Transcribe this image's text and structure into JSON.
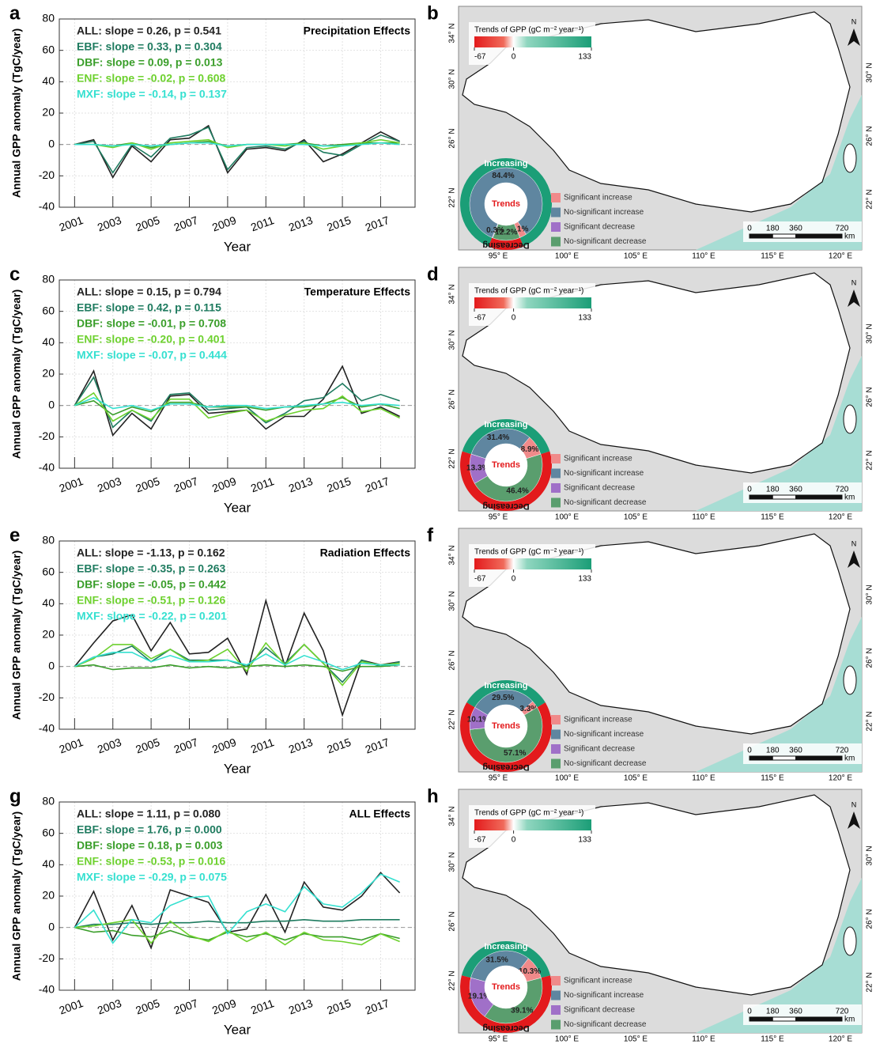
{
  "chart_data": [
    {
      "type": "line",
      "letter": "a",
      "title": "Precipitation Effects",
      "x_label": "Year",
      "y_label": "Annual GPP anomaly (TgC/year)",
      "x": [
        2001,
        2002,
        2003,
        2004,
        2005,
        2006,
        2007,
        2008,
        2009,
        2010,
        2011,
        2012,
        2013,
        2014,
        2015,
        2016,
        2017,
        2018
      ],
      "xlim": [
        2000.2,
        2018.8
      ],
      "xticks": [
        2001,
        2003,
        2005,
        2007,
        2009,
        2011,
        2013,
        2015,
        2017
      ],
      "ylim": [
        -40,
        80
      ],
      "yticks": [
        -40,
        -20,
        0,
        20,
        40,
        60,
        80
      ],
      "grid": true,
      "zero_line": true,
      "series": [
        {
          "name": "ALL: slope = 0.26,  p = 0.541",
          "color": "#222222",
          "values": [
            0,
            3,
            -21,
            -1,
            -11,
            3,
            4,
            12,
            -18,
            -3,
            -2,
            -4,
            3,
            -11,
            -6,
            1,
            8,
            2
          ]
        },
        {
          "name": "EBF: slope = 0.33,  p = 0.304",
          "color": "#1e7b5f",
          "values": [
            0,
            2,
            -18,
            0,
            -8,
            4,
            6,
            11,
            -16,
            -2,
            -1,
            -3,
            2,
            -5,
            -7,
            0,
            6,
            2
          ]
        },
        {
          "name": "DBF: slope = 0.09,  p = 0.013",
          "color": "#3a9e2a",
          "values": [
            0,
            0,
            -1,
            1,
            -2,
            0,
            1,
            2,
            -1,
            0,
            0,
            0,
            1,
            -1,
            0,
            1,
            1,
            1
          ]
        },
        {
          "name": "ENF: slope = -0.02,  p = 0.608",
          "color": "#6dd12e",
          "values": [
            0,
            0,
            -2,
            1,
            -3,
            1,
            2,
            3,
            -2,
            0,
            0,
            -1,
            1,
            -3,
            -1,
            1,
            3,
            1
          ]
        },
        {
          "name": "MXF: slope = -0.14,  p = 0.137",
          "color": "#35e0d0",
          "values": [
            0,
            0,
            -1,
            0,
            -1,
            0,
            1,
            1,
            -1,
            0,
            0,
            0,
            0,
            -1,
            -1,
            0,
            1,
            0
          ]
        }
      ]
    },
    {
      "type": "map",
      "letter": "b",
      "colorbar": {
        "title": "Trends of GPP (gC m⁻² year⁻¹)",
        "lim": [
          -67,
          133
        ],
        "ticks": [
          -67,
          0,
          133
        ]
      },
      "lat_labels": [
        "34° N",
        "30° N",
        "26° N",
        "22° N"
      ],
      "lon_labels": [
        "95° E",
        "100° E",
        "105° E",
        "110° E",
        "115° E",
        "120° E"
      ],
      "north": "N",
      "scalebar": {
        "ticks": [
          0,
          180,
          360,
          720
        ],
        "unit": "km"
      },
      "donut": {
        "center": "Trends",
        "ring_labels": [
          "Increasing",
          "Decreasing"
        ],
        "ring_colors": [
          "#1b9e77",
          "#e31a1c"
        ],
        "categories": [
          "Significant increase",
          "No-significant increase",
          "Significant decrease",
          "No-significant decrease"
        ],
        "colors": [
          "#f08a8a",
          "#5f86a0",
          "#a070c8",
          "#5a9e6e"
        ],
        "values": [
          3.1,
          84.4,
          0.3,
          12.2
        ],
        "value_labels": [
          "3.1%",
          "84.4%",
          "0.3%",
          "12.2%"
        ]
      }
    },
    {
      "type": "line",
      "letter": "c",
      "title": "Temperature Effects",
      "x_label": "Year",
      "y_label": "Annual GPP anomaly (TgC/year)",
      "x": [
        2001,
        2002,
        2003,
        2004,
        2005,
        2006,
        2007,
        2008,
        2009,
        2010,
        2011,
        2012,
        2013,
        2014,
        2015,
        2016,
        2017,
        2018
      ],
      "xlim": [
        2000.2,
        2018.8
      ],
      "xticks": [
        2001,
        2003,
        2005,
        2007,
        2009,
        2011,
        2013,
        2015,
        2017
      ],
      "ylim": [
        -40,
        80
      ],
      "yticks": [
        -40,
        -20,
        0,
        20,
        40,
        60,
        80
      ],
      "grid": true,
      "zero_line": true,
      "series": [
        {
          "name": "ALL: slope = 0.15,  p = 0.794",
          "color": "#222222",
          "values": [
            0,
            22,
            -19,
            -5,
            -15,
            6,
            7,
            -5,
            -4,
            -3,
            -15,
            -7,
            -7,
            4,
            25,
            -5,
            -1,
            -7
          ]
        },
        {
          "name": "EBF: slope = 0.42,  p = 0.115",
          "color": "#1e7b5f",
          "values": [
            0,
            18,
            -14,
            -3,
            -10,
            7,
            8,
            -3,
            -2,
            -1,
            -11,
            -5,
            3,
            5,
            14,
            3,
            7,
            3
          ]
        },
        {
          "name": "DBF: slope = -0.01,  p = 0.708",
          "color": "#3a9e2a",
          "values": [
            0,
            3,
            -6,
            -1,
            -4,
            2,
            2,
            -1,
            -1,
            -1,
            -3,
            -1,
            -1,
            1,
            5,
            -1,
            1,
            -2
          ]
        },
        {
          "name": "ENF: slope = -0.20,  p = 0.401",
          "color": "#6dd12e",
          "values": [
            0,
            8,
            -10,
            -3,
            -9,
            4,
            4,
            -8,
            -5,
            -3,
            -10,
            -6,
            -3,
            -2,
            6,
            -4,
            -2,
            -8
          ]
        },
        {
          "name": "MXF: slope = -0.07,  p = 0.444",
          "color": "#35e0d0",
          "values": [
            0,
            5,
            -2,
            0,
            -3,
            1,
            1,
            -1,
            0,
            0,
            -2,
            -1,
            0,
            1,
            2,
            0,
            1,
            0
          ]
        }
      ]
    },
    {
      "type": "map",
      "letter": "d",
      "colorbar": {
        "title": "Trends of GPP (gC m⁻² year⁻¹)",
        "lim": [
          -67,
          133
        ],
        "ticks": [
          -67,
          0,
          133
        ]
      },
      "lat_labels": [
        "34° N",
        "30° N",
        "26° N",
        "22° N"
      ],
      "lon_labels": [
        "95° E",
        "100° E",
        "105° E",
        "110° E",
        "115° E",
        "120° E"
      ],
      "north": "N",
      "scalebar": {
        "ticks": [
          0,
          180,
          360,
          720
        ],
        "unit": "km"
      },
      "donut": {
        "center": "Trends",
        "ring_labels": [
          "Increasing",
          "Decreasing"
        ],
        "ring_colors": [
          "#1b9e77",
          "#e31a1c"
        ],
        "categories": [
          "Significant increase",
          "No-significant increase",
          "Significant decrease",
          "No-significant decrease"
        ],
        "colors": [
          "#f08a8a",
          "#5f86a0",
          "#a070c8",
          "#5a9e6e"
        ],
        "values": [
          8.9,
          31.4,
          13.3,
          46.4
        ],
        "value_labels": [
          "8.9%",
          "31.4%",
          "13.3%",
          "46.4%"
        ]
      }
    },
    {
      "type": "line",
      "letter": "e",
      "title": "Radiation Effects",
      "x_label": "Year",
      "y_label": "Annual GPP anomaly (TgC/year)",
      "x": [
        2001,
        2002,
        2003,
        2004,
        2005,
        2006,
        2007,
        2008,
        2009,
        2010,
        2011,
        2012,
        2013,
        2014,
        2015,
        2016,
        2017,
        2018
      ],
      "xlim": [
        2000.2,
        2018.8
      ],
      "xticks": [
        2001,
        2003,
        2005,
        2007,
        2009,
        2011,
        2013,
        2015,
        2017
      ],
      "ylim": [
        -40,
        80
      ],
      "yticks": [
        -40,
        -20,
        0,
        20,
        40,
        60,
        80
      ],
      "grid": true,
      "zero_line": true,
      "series": [
        {
          "name": "ALL: slope = -1.13,  p = 0.162",
          "color": "#222222",
          "values": [
            0,
            15,
            29,
            33,
            10,
            28,
            8,
            9,
            18,
            -5,
            42,
            0,
            34,
            10,
            -31,
            4,
            1,
            3
          ]
        },
        {
          "name": "EBF: slope = -0.35,  p = 0.263",
          "color": "#1e7b5f",
          "values": [
            0,
            6,
            8,
            13,
            3,
            11,
            4,
            4,
            4,
            0,
            12,
            2,
            14,
            2,
            -10,
            4,
            0,
            3
          ]
        },
        {
          "name": "DBF: slope = -0.05,  p = 0.442",
          "color": "#3a9e2a",
          "values": [
            0,
            1,
            -2,
            -1,
            -1,
            1,
            -1,
            0,
            -1,
            0,
            1,
            0,
            1,
            0,
            -3,
            0,
            0,
            1
          ]
        },
        {
          "name": "ENF: slope = -0.51,  p = 0.126",
          "color": "#6dd12e",
          "values": [
            0,
            5,
            14,
            14,
            5,
            11,
            3,
            4,
            11,
            -3,
            15,
            1,
            14,
            2,
            -12,
            3,
            1,
            2
          ]
        },
        {
          "name": "MXF: slope = -0.22,  p = 0.201",
          "color": "#35e0d0",
          "values": [
            0,
            6,
            9,
            9,
            3,
            7,
            3,
            3,
            4,
            1,
            8,
            1,
            7,
            3,
            -2,
            2,
            1,
            1
          ]
        }
      ]
    },
    {
      "type": "map",
      "letter": "f",
      "colorbar": {
        "title": "Trends of GPP (gC m⁻² year⁻¹)",
        "lim": [
          -67,
          133
        ],
        "ticks": [
          -67,
          0,
          133
        ]
      },
      "lat_labels": [
        "34° N",
        "30° N",
        "26° N",
        "22° N"
      ],
      "lon_labels": [
        "95° E",
        "100° E",
        "105° E",
        "110° E",
        "115° E",
        "120° E"
      ],
      "north": "N",
      "scalebar": {
        "ticks": [
          0,
          180,
          360,
          720
        ],
        "unit": "km"
      },
      "donut": {
        "center": "Trends",
        "ring_labels": [
          "Increasing",
          "Decreasing"
        ],
        "ring_colors": [
          "#1b9e77",
          "#e31a1c"
        ],
        "categories": [
          "Significant increase",
          "No-significant increase",
          "Significant decrease",
          "No-significant decrease"
        ],
        "colors": [
          "#f08a8a",
          "#5f86a0",
          "#a070c8",
          "#5a9e6e"
        ],
        "values": [
          3.3,
          29.5,
          10.1,
          57.1
        ],
        "value_labels": [
          "3.3%",
          "29.5%",
          "10.1%",
          "57.1%"
        ]
      }
    },
    {
      "type": "line",
      "letter": "g",
      "title": "ALL Effects",
      "x_label": "Year",
      "y_label": "Annual GPP anomaly (TgC/year)",
      "x": [
        2001,
        2002,
        2003,
        2004,
        2005,
        2006,
        2007,
        2008,
        2009,
        2010,
        2011,
        2012,
        2013,
        2014,
        2015,
        2016,
        2017,
        2018
      ],
      "xlim": [
        2000.2,
        2018.8
      ],
      "xticks": [
        2001,
        2003,
        2005,
        2007,
        2009,
        2011,
        2013,
        2015,
        2017
      ],
      "ylim": [
        -40,
        80
      ],
      "yticks": [
        -40,
        -20,
        0,
        20,
        40,
        60,
        80
      ],
      "grid": true,
      "zero_line": true,
      "series": [
        {
          "name": "ALL: slope = 1.11,  p = 0.080",
          "color": "#222222",
          "values": [
            0,
            23,
            -8,
            14,
            -13,
            24,
            20,
            16,
            -3,
            -1,
            21,
            -3,
            29,
            13,
            11,
            20,
            35,
            22
          ]
        },
        {
          "name": "EBF: slope = 1.76,  p = 0.000",
          "color": "#1e7b5f",
          "values": [
            0,
            2,
            2,
            3,
            2,
            3,
            3,
            4,
            3,
            3,
            4,
            4,
            5,
            4,
            4,
            5,
            5,
            5
          ]
        },
        {
          "name": "DBF: slope = 0.18,  p = 0.003",
          "color": "#3a9e2a",
          "values": [
            0,
            -3,
            -2,
            -5,
            -6,
            -2,
            -6,
            -8,
            -3,
            -6,
            -4,
            -8,
            -4,
            -6,
            -6,
            -8,
            -4,
            -7
          ]
        },
        {
          "name": "ENF: slope = -0.53,  p = 0.016",
          "color": "#6dd12e",
          "values": [
            0,
            1,
            3,
            5,
            -10,
            4,
            -5,
            -9,
            -2,
            -9,
            -3,
            -11,
            -3,
            -8,
            -9,
            -11,
            -4,
            -9
          ]
        },
        {
          "name": "MXF: slope = -0.29,  p = 0.075",
          "color": "#35e0d0",
          "values": [
            0,
            11,
            -10,
            5,
            3,
            14,
            19,
            20,
            -4,
            10,
            15,
            10,
            26,
            15,
            13,
            22,
            34,
            29
          ]
        }
      ]
    },
    {
      "type": "map",
      "letter": "h",
      "colorbar": {
        "title": "Trends of GPP (gC m⁻² year⁻¹)",
        "lim": [
          -67,
          133
        ],
        "ticks": [
          -67,
          0,
          133
        ]
      },
      "lat_labels": [
        "34° N",
        "30° N",
        "26° N",
        "22° N"
      ],
      "lon_labels": [
        "95° E",
        "100° E",
        "105° E",
        "110° E",
        "115° E",
        "120° E"
      ],
      "north": "N",
      "scalebar": {
        "ticks": [
          0,
          180,
          360,
          720
        ],
        "unit": "km"
      },
      "donut": {
        "center": "Trends",
        "ring_labels": [
          "Increasing",
          "Decreasing"
        ],
        "ring_colors": [
          "#1b9e77",
          "#e31a1c"
        ],
        "categories": [
          "Significant increase",
          "No-significant increase",
          "Significant decrease",
          "No-significant decrease"
        ],
        "colors": [
          "#f08a8a",
          "#5f86a0",
          "#a070c8",
          "#5a9e6e"
        ],
        "values": [
          10.3,
          31.5,
          19.1,
          39.1
        ],
        "value_labels": [
          "10.3%",
          "31.5%",
          "19.1%",
          "39.1%"
        ]
      }
    }
  ]
}
